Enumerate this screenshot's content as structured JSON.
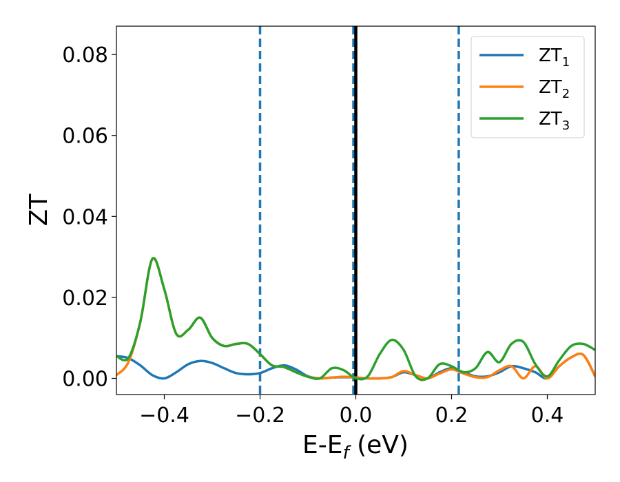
{
  "chart_data": {
    "type": "line",
    "xlabel": {
      "main": "E-E",
      "sub": "f",
      "unit": " (eV)"
    },
    "ylabel": "ZT",
    "xlim": [
      -0.5,
      0.5
    ],
    "ylim": [
      -0.004,
      0.087
    ],
    "xticks": [
      -0.4,
      -0.2,
      0.0,
      0.2,
      0.4
    ],
    "xtick_labels": [
      "−0.4",
      "−0.2",
      "0.0",
      "0.2",
      "0.4"
    ],
    "yticks": [
      0.0,
      0.02,
      0.04,
      0.06,
      0.08
    ],
    "ytick_labels": [
      "0.00",
      "0.02",
      "0.04",
      "0.06",
      "0.08"
    ],
    "grid": false,
    "legend_position": "top-right",
    "vlines_dashed": {
      "x": [
        -0.2,
        -0.005,
        0.215
      ],
      "color": "#1f77b4"
    },
    "vline_solid": {
      "x": 0.0,
      "color": "#000000"
    },
    "series": [
      {
        "name": "ZT",
        "sub": "1",
        "color": "#1f77b4",
        "x": [
          -0.5,
          -0.475,
          -0.45,
          -0.425,
          -0.4,
          -0.375,
          -0.35,
          -0.325,
          -0.3,
          -0.275,
          -0.25,
          -0.225,
          -0.2,
          -0.175,
          -0.15,
          -0.125,
          -0.1,
          -0.075,
          -0.05,
          -0.025,
          0.0,
          0.025,
          0.05,
          0.075,
          0.1,
          0.125,
          0.15,
          0.175,
          0.2,
          0.225,
          0.25,
          0.275,
          0.3,
          0.325,
          0.35,
          0.375,
          0.4,
          0.425,
          0.45,
          0.475,
          0.5
        ],
        "y": [
          0.0055,
          0.005,
          0.0032,
          0.0008,
          0.0,
          0.0015,
          0.0035,
          0.0043,
          0.0038,
          0.0025,
          0.0013,
          0.001,
          0.0013,
          0.0025,
          0.0032,
          0.0022,
          0.0005,
          0.0,
          0.0002,
          0.0003,
          0.0002,
          0.0,
          0.0,
          0.0003,
          0.0015,
          0.0008,
          0.0,
          0.0015,
          0.0025,
          0.0015,
          0.0005,
          0.0005,
          0.0015,
          0.003,
          0.0025,
          0.0015,
          0.0,
          0.003,
          0.0052,
          0.0058,
          0.0005
        ]
      },
      {
        "name": "ZT",
        "sub": "2",
        "color": "#ff7f0e",
        "x": [
          -0.5,
          -0.475,
          -0.45,
          -0.425,
          -0.4,
          -0.375,
          -0.35,
          -0.325,
          -0.3,
          -0.275,
          -0.25,
          -0.225,
          -0.2,
          -0.175,
          -0.15,
          -0.125,
          -0.1,
          -0.075,
          -0.05,
          -0.025,
          0.0,
          0.025,
          0.05,
          0.075,
          0.1,
          0.125,
          0.15,
          0.175,
          0.2,
          0.225,
          0.25,
          0.275,
          0.3,
          0.325,
          0.35,
          0.375,
          0.4,
          0.425,
          0.45,
          0.475,
          0.5
        ],
        "y": [
          0.0008,
          0.004,
          0.014,
          0.0295,
          0.022,
          0.011,
          0.012,
          0.015,
          0.01,
          0.008,
          0.0085,
          0.0085,
          0.006,
          0.0032,
          0.0028,
          0.0015,
          0.0004,
          0.0,
          0.0002,
          0.0004,
          0.0002,
          0.0,
          0.0,
          0.0003,
          0.0018,
          0.0008,
          0.0,
          0.0012,
          0.0022,
          0.0012,
          0.0003,
          0.0003,
          0.002,
          0.003,
          0.0,
          0.003,
          0.0,
          0.003,
          0.0052,
          0.0058,
          0.0005
        ]
      },
      {
        "name": "ZT",
        "sub": "3",
        "color": "#2ca02c",
        "x": [
          -0.5,
          -0.475,
          -0.45,
          -0.425,
          -0.4,
          -0.375,
          -0.35,
          -0.325,
          -0.3,
          -0.275,
          -0.25,
          -0.225,
          -0.2,
          -0.175,
          -0.15,
          -0.125,
          -0.1,
          -0.075,
          -0.05,
          -0.025,
          0.0,
          0.025,
          0.05,
          0.075,
          0.1,
          0.125,
          0.15,
          0.175,
          0.2,
          0.225,
          0.25,
          0.275,
          0.3,
          0.325,
          0.35,
          0.375,
          0.4,
          0.425,
          0.45,
          0.475,
          0.5
        ],
        "y": [
          0.0055,
          0.005,
          0.014,
          0.0295,
          0.022,
          0.011,
          0.012,
          0.015,
          0.01,
          0.008,
          0.0085,
          0.0085,
          0.006,
          0.0032,
          0.0028,
          0.0015,
          0.0004,
          0.0,
          0.0025,
          0.002,
          0.0,
          0.0005,
          0.006,
          0.0095,
          0.007,
          0.0005,
          0.0,
          0.0035,
          0.003,
          0.0015,
          0.0025,
          0.0065,
          0.004,
          0.0085,
          0.009,
          0.0035,
          0.0005,
          0.0045,
          0.008,
          0.0085,
          0.007
        ]
      }
    ]
  }
}
